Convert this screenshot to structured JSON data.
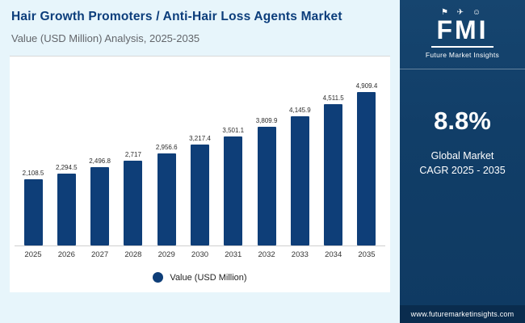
{
  "header": {
    "title": "Hair Growth Promoters / Anti-Hair Loss Agents Market",
    "subtitle": "Value (USD Million) Analysis, 2025-2035"
  },
  "chart_data": {
    "type": "bar",
    "title": "Hair Growth Promoters / Anti-Hair Loss Agents Market",
    "subtitle": "Value (USD Million) Analysis, 2025-2035",
    "categories": [
      "2025",
      "2026",
      "2027",
      "2028",
      "2029",
      "2030",
      "2031",
      "2032",
      "2033",
      "2034",
      "2035"
    ],
    "values": [
      2108.5,
      2294.5,
      2496.8,
      2717,
      2956.6,
      3217.4,
      3501.1,
      3809.9,
      4145.9,
      4511.5,
      4909.4
    ],
    "labels": [
      "2,108.5",
      "2,294.5",
      "2,496.8",
      "2,717",
      "2,956.6",
      "3,217.4",
      "3,501.1",
      "3,809.9",
      "4,145.9",
      "4,511.5",
      "4,909.4"
    ],
    "legend": "Value (USD Million)",
    "xlabel": "",
    "ylabel": "Value (USD Million)",
    "ylim": [
      0,
      4909.4
    ],
    "grid": false,
    "legend_position": "bottom",
    "bar_color": "#0e3e78"
  },
  "sidebar": {
    "logo_icons": "⚑ ✈ ☺",
    "logo_text": "FMI",
    "logo_subtext": "Future Market Insights",
    "cagr_value": "8.8%",
    "cagr_label_line1": "Global Market",
    "cagr_label_line2": "CAGR 2025 - 2035",
    "website": "www.futuremarketinsights.com",
    "bg_color": "#113e68"
  }
}
